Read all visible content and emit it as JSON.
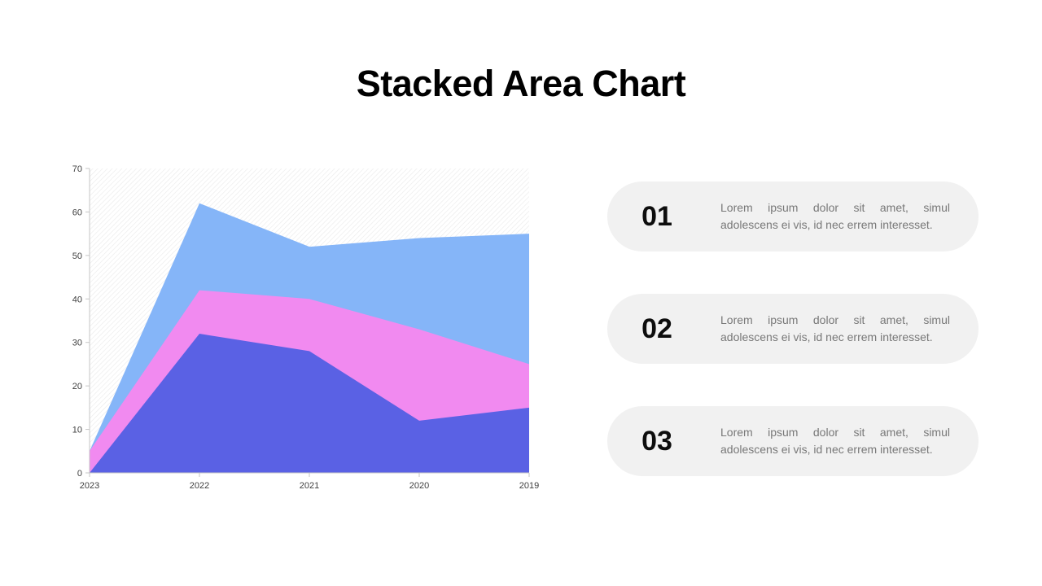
{
  "title": "Stacked Area Chart",
  "chart_data": {
    "type": "area",
    "stacked": true,
    "title": "",
    "xlabel": "",
    "ylabel": "",
    "categories": [
      "2023",
      "2022",
      "2021",
      "2020",
      "2019"
    ],
    "series": [
      {
        "name": "series-1-bottom",
        "color": "#5a61e4",
        "values": [
          0,
          32,
          28,
          12,
          15
        ]
      },
      {
        "name": "series-2-middle",
        "color": "#f18af0",
        "values": [
          5,
          10,
          12,
          21,
          10
        ]
      },
      {
        "name": "series-3-top",
        "color": "#85b5f8",
        "values": [
          0,
          20,
          12,
          21,
          30
        ]
      }
    ],
    "ylim": [
      0,
      70
    ],
    "yticks": [
      0,
      10,
      20,
      30,
      40,
      50,
      60,
      70
    ],
    "grid": false,
    "legend": "none",
    "plot_background": "diagonal-hatch"
  },
  "cards": [
    {
      "number": "01",
      "text": "Lorem ipsum dolor sit amet, simul adolescens ei vis, id nec errem interesset."
    },
    {
      "number": "02",
      "text": "Lorem ipsum dolor sit amet, simul adolescens ei vis, id nec errem interesset."
    },
    {
      "number": "03",
      "text": "Lorem ipsum dolor sit amet, simul adolescens ei vis, id nec errem interesset."
    }
  ],
  "colors": {
    "card_background": "#f1f1f1",
    "axis_line": "#c6c6c6",
    "axis_label": "#404040",
    "hatch_line": "#ebebeb",
    "title_text": "#000000",
    "card_number_text": "#0d0d0d",
    "card_body_text": "#787878"
  }
}
